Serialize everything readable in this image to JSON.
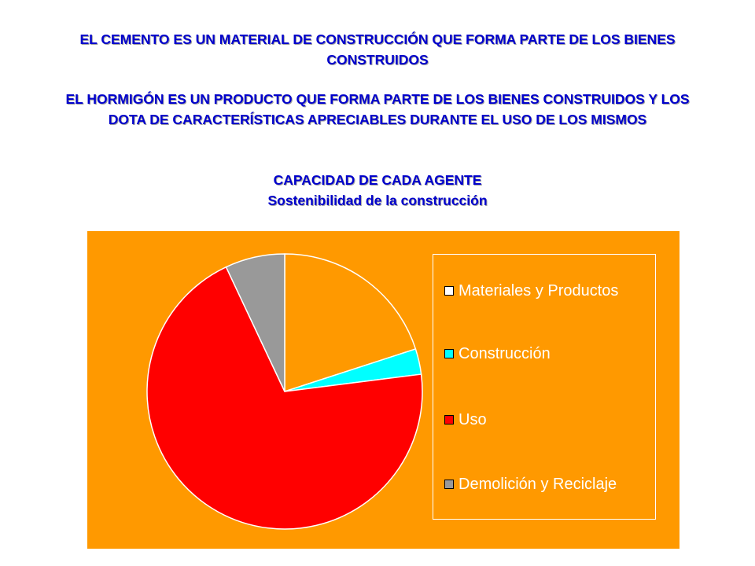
{
  "headlines": {
    "line1": "EL CEMENTO ES UN MATERIAL DE CONSTRUCCIÓN QUE FORMA PARTE DE LOS BIENES CONSTRUIDOS",
    "line2": "EL HORMIGÓN ES UN PRODUCTO QUE FORMA PARTE DE LOS BIENES CONSTRUIDOS Y LOS DOTA DE CARACTERÍSTICAS APRECIABLES DURANTE EL USO DE LOS MISMOS",
    "line3": "CAPACIDAD DE CADA AGENTE",
    "line4": "Sostenibilidad de la construcción"
  },
  "chart_data": {
    "type": "pie",
    "categories": [
      "Materiales y Productos",
      "Construcción",
      "Uso",
      "Demolición y Reciclaje"
    ],
    "values": [
      20,
      3,
      70,
      7
    ],
    "colors": [
      "#ff9900",
      "#00ffff",
      "#ff0000",
      "#999999"
    ],
    "legend_swatch_colors": [
      "#ffffff",
      "#00ffff",
      "#ff0000",
      "#999999"
    ],
    "background": "#ff9900",
    "legend_position": "right"
  }
}
